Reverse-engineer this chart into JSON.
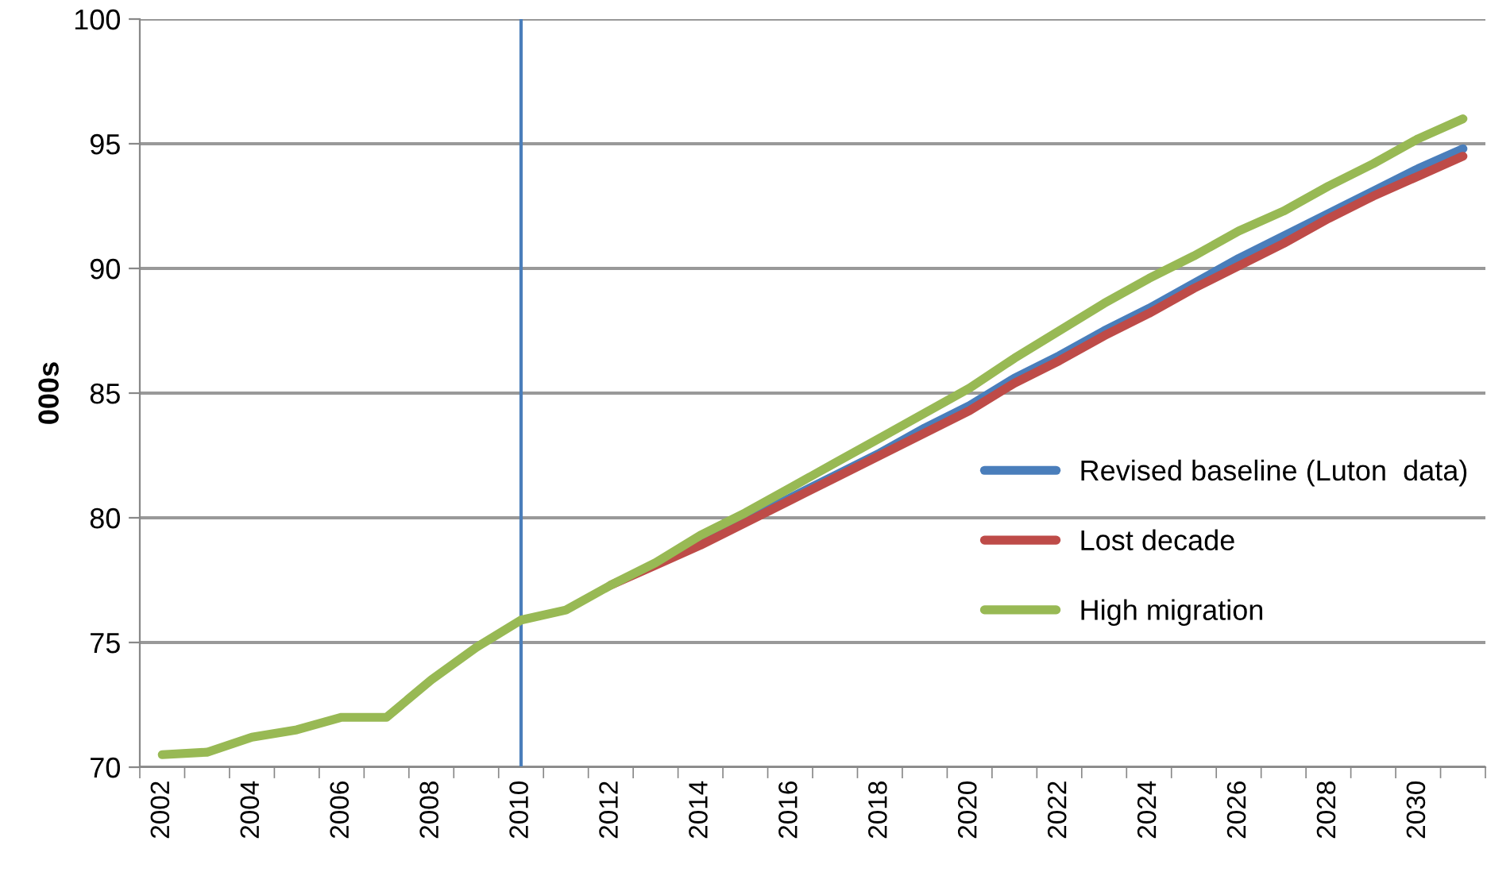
{
  "chart_data": {
    "type": "line",
    "ylabel": "000s",
    "categories": [
      "2002",
      null,
      "2004",
      null,
      "2006",
      null,
      "2008",
      null,
      "2010",
      null,
      "2012",
      null,
      "2014",
      null,
      "2016",
      null,
      "2018",
      null,
      "2020",
      null,
      "2022",
      null,
      "2024",
      null,
      "2026",
      null,
      "2028",
      null,
      "2030",
      null
    ],
    "series": [
      {
        "name": "Revised baseline (Luton  data)",
        "color": "#4a7ebb",
        "values": [
          null,
          null,
          null,
          null,
          null,
          null,
          null,
          null,
          null,
          null,
          null,
          null,
          79.0,
          79.9,
          80.8,
          81.7,
          82.6,
          83.6,
          84.5,
          85.6,
          86.5,
          87.5,
          88.4,
          89.4,
          90.4,
          91.3,
          92.2,
          93.1,
          94.0,
          94.8
        ]
      },
      {
        "name": "Lost decade",
        "color": "#be4b48",
        "values": [
          null,
          null,
          null,
          null,
          null,
          null,
          null,
          null,
          null,
          null,
          77.3,
          78.1,
          78.9,
          79.8,
          80.7,
          81.6,
          82.5,
          83.4,
          84.3,
          85.4,
          86.3,
          87.3,
          88.2,
          89.2,
          90.1,
          91.0,
          92.0,
          92.9,
          93.7,
          94.5
        ]
      },
      {
        "name": "High migration",
        "color": "#98b954",
        "values": [
          70.5,
          70.6,
          71.2,
          71.5,
          72.0,
          72.0,
          73.5,
          74.8,
          75.9,
          76.3,
          77.3,
          78.2,
          79.3,
          80.2,
          81.2,
          82.2,
          83.2,
          84.2,
          85.2,
          86.4,
          87.5,
          88.6,
          89.6,
          90.5,
          91.5,
          92.3,
          93.3,
          94.2,
          95.2,
          96.0
        ]
      }
    ],
    "ylim": [
      70,
      100
    ],
    "yticks": [
      70,
      75,
      80,
      85,
      90,
      95,
      100
    ],
    "grid": "y",
    "legend": "right",
    "ref_lines": [
      {
        "axis": "x",
        "value": "2010",
        "color": "#4a7ebb"
      }
    ]
  }
}
